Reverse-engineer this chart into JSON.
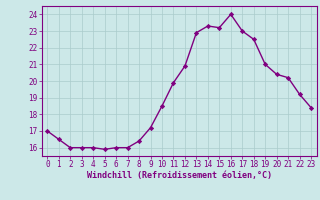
{
  "x": [
    0,
    1,
    2,
    3,
    4,
    5,
    6,
    7,
    8,
    9,
    10,
    11,
    12,
    13,
    14,
    15,
    16,
    17,
    18,
    19,
    20,
    21,
    22,
    23
  ],
  "y": [
    17.0,
    16.5,
    16.0,
    16.0,
    16.0,
    15.9,
    16.0,
    16.0,
    16.4,
    17.2,
    18.5,
    19.9,
    20.9,
    22.9,
    23.3,
    23.2,
    24.0,
    23.0,
    22.5,
    21.0,
    20.4,
    20.2,
    19.2,
    18.4
  ],
  "line_color": "#800080",
  "marker": "D",
  "marker_size": 2.2,
  "line_width": 1.0,
  "bg_color": "#cce8e8",
  "grid_color": "#aacccc",
  "xlabel": "Windchill (Refroidissement éolien,°C)",
  "ylim": [
    15.5,
    24.5
  ],
  "xlim": [
    -0.5,
    23.5
  ],
  "yticks": [
    16,
    17,
    18,
    19,
    20,
    21,
    22,
    23,
    24
  ],
  "xticks": [
    0,
    1,
    2,
    3,
    4,
    5,
    6,
    7,
    8,
    9,
    10,
    11,
    12,
    13,
    14,
    15,
    16,
    17,
    18,
    19,
    20,
    21,
    22,
    23
  ],
  "tick_color": "#800080",
  "label_fontsize": 6.0,
  "tick_fontsize": 5.5
}
